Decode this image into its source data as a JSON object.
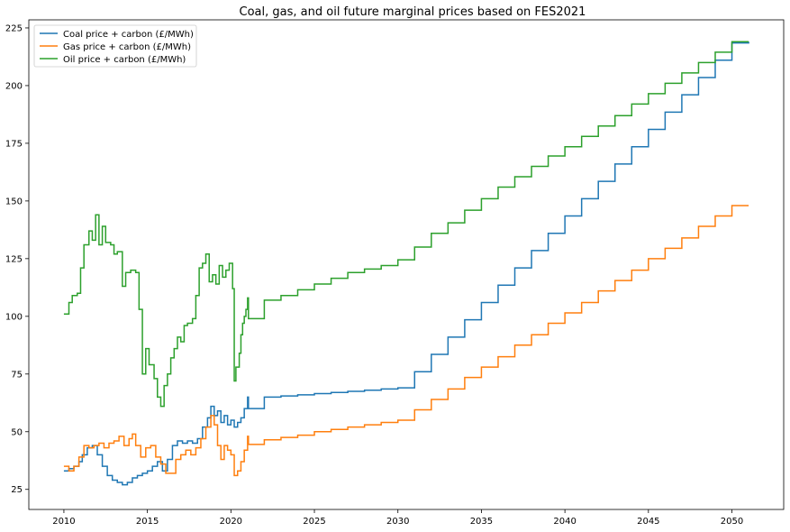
{
  "chart_data": {
    "type": "line",
    "title": "Coal, gas, and oil future marginal prices based on FES2021",
    "xlabel": "",
    "ylabel": "",
    "xlim": [
      2007.9,
      2053.1
    ],
    "ylim": [
      16.3,
      228.5
    ],
    "x_ticks": [
      2010,
      2015,
      2020,
      2025,
      2030,
      2035,
      2040,
      2045,
      2050
    ],
    "y_ticks": [
      25,
      50,
      75,
      100,
      125,
      150,
      175,
      200,
      225
    ],
    "grid": false,
    "legend_position": "top-left",
    "series": [
      {
        "name": "Coal price + carbon (£/MWh)",
        "color": "#1f77b4",
        "points": [
          [
            2010.0,
            33
          ],
          [
            2010.3,
            34
          ],
          [
            2010.6,
            35
          ],
          [
            2010.9,
            37
          ],
          [
            2011.1,
            40
          ],
          [
            2011.4,
            43
          ],
          [
            2011.7,
            44
          ],
          [
            2012.0,
            40
          ],
          [
            2012.3,
            35
          ],
          [
            2012.6,
            31
          ],
          [
            2012.9,
            29
          ],
          [
            2013.2,
            28
          ],
          [
            2013.5,
            27
          ],
          [
            2013.8,
            28
          ],
          [
            2014.1,
            30
          ],
          [
            2014.4,
            31
          ],
          [
            2014.7,
            32
          ],
          [
            2015.0,
            33
          ],
          [
            2015.3,
            35
          ],
          [
            2015.6,
            37
          ],
          [
            2015.9,
            33
          ],
          [
            2016.2,
            38
          ],
          [
            2016.5,
            44
          ],
          [
            2016.8,
            46
          ],
          [
            2017.1,
            45
          ],
          [
            2017.4,
            46
          ],
          [
            2017.7,
            45
          ],
          [
            2018.0,
            47
          ],
          [
            2018.3,
            52
          ],
          [
            2018.6,
            56
          ],
          [
            2018.8,
            61
          ],
          [
            2019.0,
            57
          ],
          [
            2019.2,
            59
          ],
          [
            2019.4,
            54
          ],
          [
            2019.6,
            57
          ],
          [
            2019.8,
            53
          ],
          [
            2020.0,
            55
          ],
          [
            2020.2,
            52
          ],
          [
            2020.4,
            54
          ],
          [
            2020.6,
            56
          ],
          [
            2020.8,
            60
          ],
          [
            2021.0,
            65
          ],
          [
            2021.05,
            60
          ],
          [
            2022,
            65
          ],
          [
            2023,
            65.5
          ],
          [
            2024,
            66
          ],
          [
            2025,
            66.5
          ],
          [
            2026,
            67
          ],
          [
            2027,
            67.5
          ],
          [
            2028,
            68
          ],
          [
            2029,
            68.5
          ],
          [
            2030,
            69
          ],
          [
            2031,
            76
          ],
          [
            2032,
            83.5
          ],
          [
            2033,
            91
          ],
          [
            2034,
            98.5
          ],
          [
            2035,
            106
          ],
          [
            2036,
            113.5
          ],
          [
            2037,
            121
          ],
          [
            2038,
            128.5
          ],
          [
            2039,
            136
          ],
          [
            2040,
            143.5
          ],
          [
            2041,
            151
          ],
          [
            2042,
            158.5
          ],
          [
            2043,
            166
          ],
          [
            2044,
            173.5
          ],
          [
            2045,
            181
          ],
          [
            2046,
            188.5
          ],
          [
            2047,
            196
          ],
          [
            2048,
            203.5
          ],
          [
            2049,
            211
          ],
          [
            2050,
            218.5
          ],
          [
            2051,
            219
          ]
        ]
      },
      {
        "name": "Gas price + carbon (£/MWh)",
        "color": "#ff7f0e",
        "points": [
          [
            2010.0,
            35
          ],
          [
            2010.3,
            33
          ],
          [
            2010.6,
            35
          ],
          [
            2010.9,
            39
          ],
          [
            2011.2,
            44
          ],
          [
            2011.5,
            43
          ],
          [
            2011.8,
            44
          ],
          [
            2012.1,
            45
          ],
          [
            2012.4,
            43
          ],
          [
            2012.7,
            45
          ],
          [
            2013.0,
            46
          ],
          [
            2013.3,
            48
          ],
          [
            2013.6,
            44
          ],
          [
            2013.9,
            47
          ],
          [
            2014.1,
            49
          ],
          [
            2014.3,
            44
          ],
          [
            2014.6,
            39
          ],
          [
            2014.9,
            43
          ],
          [
            2015.2,
            44
          ],
          [
            2015.5,
            39
          ],
          [
            2015.8,
            36
          ],
          [
            2016.1,
            32
          ],
          [
            2016.4,
            32
          ],
          [
            2016.7,
            38
          ],
          [
            2017.0,
            40
          ],
          [
            2017.3,
            42
          ],
          [
            2017.6,
            40
          ],
          [
            2017.9,
            43
          ],
          [
            2018.2,
            47
          ],
          [
            2018.5,
            52
          ],
          [
            2018.8,
            57
          ],
          [
            2019.0,
            53
          ],
          [
            2019.2,
            44
          ],
          [
            2019.4,
            38
          ],
          [
            2019.6,
            44
          ],
          [
            2019.8,
            42
          ],
          [
            2020.0,
            40
          ],
          [
            2020.2,
            31
          ],
          [
            2020.4,
            33
          ],
          [
            2020.6,
            37
          ],
          [
            2020.8,
            42
          ],
          [
            2021.0,
            48
          ],
          [
            2021.05,
            44.5
          ],
          [
            2022,
            46.5
          ],
          [
            2023,
            47.5
          ],
          [
            2024,
            48.5
          ],
          [
            2025,
            50
          ],
          [
            2026,
            51
          ],
          [
            2027,
            52
          ],
          [
            2028,
            53
          ],
          [
            2029,
            54
          ],
          [
            2030,
            55
          ],
          [
            2031,
            59.5
          ],
          [
            2032,
            64
          ],
          [
            2033,
            68.5
          ],
          [
            2034,
            73.5
          ],
          [
            2035,
            78
          ],
          [
            2036,
            82.5
          ],
          [
            2037,
            87.5
          ],
          [
            2038,
            92
          ],
          [
            2039,
            97
          ],
          [
            2040,
            101.5
          ],
          [
            2041,
            106
          ],
          [
            2042,
            111
          ],
          [
            2043,
            115.5
          ],
          [
            2044,
            120
          ],
          [
            2045,
            125
          ],
          [
            2046,
            129.5
          ],
          [
            2047,
            134
          ],
          [
            2048,
            139
          ],
          [
            2049,
            143.5
          ],
          [
            2050,
            148
          ],
          [
            2051,
            148
          ]
        ]
      },
      {
        "name": "Oil price + carbon (£/MWh)",
        "color": "#2ca02c",
        "points": [
          [
            2010.0,
            101
          ],
          [
            2010.3,
            106
          ],
          [
            2010.5,
            109
          ],
          [
            2010.8,
            110
          ],
          [
            2011.0,
            121
          ],
          [
            2011.2,
            131
          ],
          [
            2011.5,
            137
          ],
          [
            2011.7,
            133
          ],
          [
            2011.9,
            144
          ],
          [
            2012.1,
            131
          ],
          [
            2012.3,
            139
          ],
          [
            2012.5,
            132
          ],
          [
            2012.8,
            131
          ],
          [
            2013.0,
            127
          ],
          [
            2013.2,
            128
          ],
          [
            2013.5,
            113
          ],
          [
            2013.7,
            119
          ],
          [
            2014.0,
            120
          ],
          [
            2014.3,
            119
          ],
          [
            2014.5,
            103
          ],
          [
            2014.7,
            75
          ],
          [
            2014.9,
            86
          ],
          [
            2015.1,
            79
          ],
          [
            2015.4,
            73
          ],
          [
            2015.6,
            65
          ],
          [
            2015.8,
            61
          ],
          [
            2016.0,
            70
          ],
          [
            2016.2,
            75
          ],
          [
            2016.4,
            82
          ],
          [
            2016.6,
            86
          ],
          [
            2016.8,
            91
          ],
          [
            2017.0,
            89
          ],
          [
            2017.2,
            96
          ],
          [
            2017.4,
            97
          ],
          [
            2017.7,
            99
          ],
          [
            2017.9,
            109
          ],
          [
            2018.1,
            121
          ],
          [
            2018.3,
            123
          ],
          [
            2018.5,
            127
          ],
          [
            2018.7,
            115
          ],
          [
            2018.9,
            118
          ],
          [
            2019.1,
            114
          ],
          [
            2019.3,
            122
          ],
          [
            2019.5,
            117
          ],
          [
            2019.7,
            120
          ],
          [
            2019.9,
            123
          ],
          [
            2020.1,
            112
          ],
          [
            2020.2,
            72
          ],
          [
            2020.3,
            78
          ],
          [
            2020.5,
            84
          ],
          [
            2020.6,
            92
          ],
          [
            2020.7,
            97
          ],
          [
            2020.8,
            100
          ],
          [
            2020.9,
            103
          ],
          [
            2021.0,
            108
          ],
          [
            2021.05,
            99
          ],
          [
            2022,
            107
          ],
          [
            2023,
            109
          ],
          [
            2024,
            111.5
          ],
          [
            2025,
            114
          ],
          [
            2026,
            116.5
          ],
          [
            2027,
            119
          ],
          [
            2028,
            120.5
          ],
          [
            2029,
            122
          ],
          [
            2030,
            124.5
          ],
          [
            2031,
            130
          ],
          [
            2032,
            136
          ],
          [
            2033,
            140.5
          ],
          [
            2034,
            146
          ],
          [
            2035,
            151
          ],
          [
            2036,
            156
          ],
          [
            2037,
            160.5
          ],
          [
            2038,
            165
          ],
          [
            2039,
            169.5
          ],
          [
            2040,
            173.5
          ],
          [
            2041,
            178
          ],
          [
            2042,
            182.5
          ],
          [
            2043,
            187
          ],
          [
            2044,
            192
          ],
          [
            2045,
            196.5
          ],
          [
            2046,
            201
          ],
          [
            2047,
            205.5
          ],
          [
            2048,
            210
          ],
          [
            2049,
            214.5
          ],
          [
            2050,
            219
          ],
          [
            2051,
            219
          ]
        ]
      }
    ]
  }
}
